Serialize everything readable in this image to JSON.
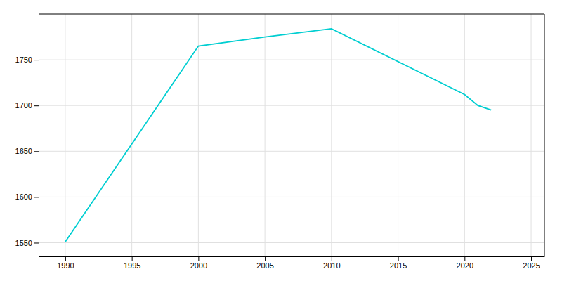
{
  "chart_data": {
    "type": "line",
    "x": [
      1990,
      2000,
      2005,
      2010,
      2020,
      2021,
      2022
    ],
    "values": [
      1551,
      1765,
      1775,
      1784,
      1712,
      1700,
      1695
    ],
    "color": "#00CED1",
    "xlim": [
      1988,
      2026
    ],
    "ylim": [
      1535,
      1800
    ],
    "xticks": [
      1990,
      1995,
      2000,
      2005,
      2010,
      2015,
      2020,
      2025
    ],
    "yticks": [
      1550,
      1600,
      1650,
      1700,
      1750
    ],
    "grid": true
  }
}
